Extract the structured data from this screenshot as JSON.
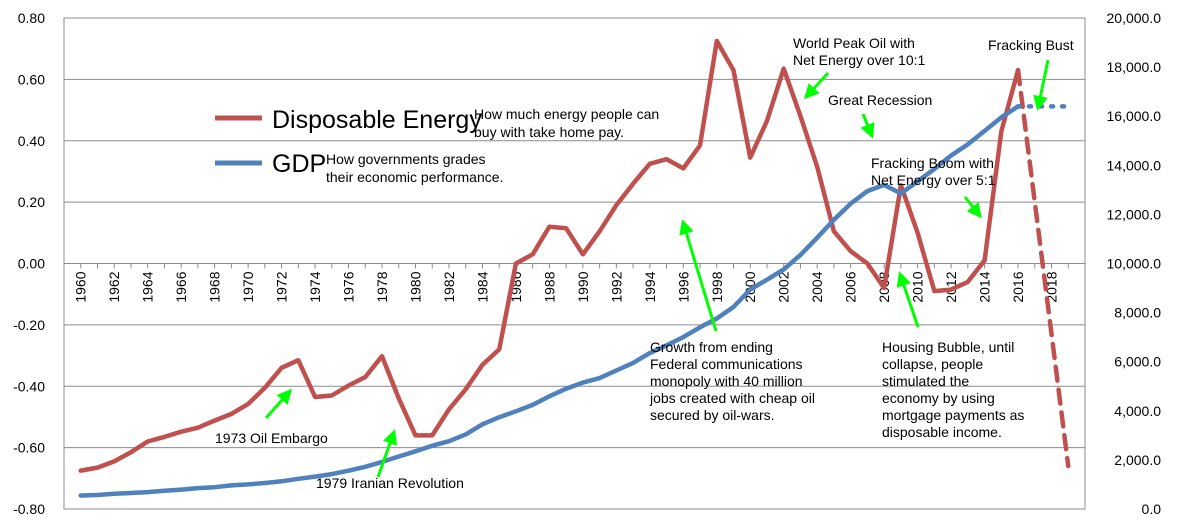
{
  "chart_data": {
    "type": "line",
    "title": "",
    "xlabel": "",
    "ylabel_left": "",
    "ylabel_right": "",
    "x_ticks": [
      "1960",
      "1962",
      "1964",
      "1966",
      "1968",
      "1970",
      "1972",
      "1974",
      "1976",
      "1978",
      "1980",
      "1982",
      "1984",
      "1986",
      "1988",
      "1990",
      "1992",
      "1994",
      "1996",
      "1998",
      "2000",
      "2002",
      "2004",
      "2006",
      "2008",
      "2010",
      "2012",
      "2014",
      "2016",
      "2018"
    ],
    "y_left_ticks": [
      "0.80",
      "0.60",
      "0.40",
      "0.20",
      "0.00",
      "-0.20",
      "-0.40",
      "-0.60",
      "-0.80"
    ],
    "y_right_ticks": [
      "20,000.0",
      "18,000.0",
      "16,000.0",
      "14,000.0",
      "12,000.0",
      "10,000.0",
      "8,000.0",
      "6,000.0",
      "4,000.0",
      "2,000.0",
      "0.0"
    ],
    "y_left_range": [
      -0.8,
      0.8
    ],
    "y_right_range": [
      0,
      20000
    ],
    "x_range": [
      1959,
      2020
    ],
    "grid": "horizontal",
    "series": [
      {
        "name": "Disposable Energy",
        "axis": "left",
        "color": "#c0504d",
        "x": [
          1960,
          1961,
          1962,
          1963,
          1964,
          1965,
          1966,
          1967,
          1968,
          1969,
          1970,
          1971,
          1972,
          1973,
          1974,
          1975,
          1976,
          1977,
          1978,
          1979,
          1980,
          1981,
          1982,
          1983,
          1984,
          1985,
          1986,
          1987,
          1988,
          1989,
          1990,
          1991,
          1992,
          1993,
          1994,
          1995,
          1996,
          1997,
          1998,
          1999,
          2000,
          2001,
          2002,
          2003,
          2004,
          2005,
          2006,
          2007,
          2008,
          2009,
          2010,
          2011,
          2012,
          2013,
          2014,
          2015,
          2016
        ],
        "values": [
          -0.675,
          -0.665,
          -0.645,
          -0.615,
          -0.58,
          -0.565,
          -0.548,
          -0.535,
          -0.512,
          -0.49,
          -0.458,
          -0.405,
          -0.34,
          -0.315,
          -0.435,
          -0.43,
          -0.398,
          -0.37,
          -0.302,
          -0.44,
          -0.56,
          -0.56,
          -0.475,
          -0.41,
          -0.33,
          -0.28,
          0.0,
          0.03,
          0.12,
          0.115,
          0.03,
          0.105,
          0.19,
          0.26,
          0.325,
          0.34,
          0.31,
          0.385,
          0.725,
          0.63,
          0.345,
          0.465,
          0.635,
          0.48,
          0.315,
          0.105,
          0.04,
          0.0,
          -0.08,
          0.255,
          0.1,
          -0.09,
          -0.085,
          -0.06,
          0.01,
          0.43,
          0.63
        ],
        "projection": {
          "style": "dashed",
          "x": [
            2016,
            2019
          ],
          "values": [
            0.63,
            -0.66
          ]
        }
      },
      {
        "name": "GDP",
        "axis": "right",
        "color": "#4f81bd",
        "x": [
          1960,
          1961,
          1962,
          1963,
          1964,
          1965,
          1966,
          1967,
          1968,
          1969,
          1970,
          1971,
          1972,
          1973,
          1974,
          1975,
          1976,
          1977,
          1978,
          1979,
          1980,
          1981,
          1982,
          1983,
          1984,
          1985,
          1986,
          1987,
          1988,
          1989,
          1990,
          1991,
          1992,
          1993,
          1994,
          1995,
          1996,
          1997,
          1998,
          1999,
          2000,
          2001,
          2002,
          2003,
          2004,
          2005,
          2006,
          2007,
          2008,
          2009,
          2010,
          2011,
          2012,
          2013,
          2014,
          2015,
          2016
        ],
        "values": [
          550,
          570,
          620,
          650,
          690,
          740,
          790,
          850,
          890,
          960,
          1000,
          1060,
          1130,
          1230,
          1320,
          1420,
          1560,
          1720,
          1920,
          2140,
          2350,
          2580,
          2760,
          3040,
          3450,
          3740,
          3980,
          4240,
          4590,
          4900,
          5150,
          5330,
          5640,
          5950,
          6350,
          6670,
          7000,
          7400,
          7760,
          8230,
          8940,
          9340,
          9760,
          10350,
          11050,
          11780,
          12440,
          12950,
          13200,
          12850,
          13350,
          13850,
          14400,
          14850,
          15400,
          15950,
          16400
        ],
        "projection": {
          "style": "dotted",
          "x": [
            2016,
            2019
          ],
          "values": [
            16400,
            16400
          ]
        }
      }
    ],
    "legend": [
      {
        "label": "Disposable Energy",
        "color": "#c0504d",
        "note": "How much energy people can buy with take home pay."
      },
      {
        "label": "GDP",
        "color": "#4f81bd",
        "note": "How governments grades their economic performance."
      }
    ],
    "legend_placement": "top-left",
    "annotations": [
      {
        "text": "1973 Oil Embargo"
      },
      {
        "text": "1979 Iranian Revolution"
      },
      {
        "text": "Growth from ending Federal communications monopoly with 40 million jobs created with cheap oil secured by oil-wars."
      },
      {
        "text": "World Peak Oil with Net Energy over 10:1"
      },
      {
        "text": "Great Recession"
      },
      {
        "text": "Fracking Bust"
      },
      {
        "text": "Fracking Boom with Net Energy over 5:1"
      },
      {
        "text": "Housing Bubble, until collapse, people stimulated the economy by using mortgage payments as disposable income."
      }
    ],
    "arrow_color": "#00ff00"
  },
  "legend_lines": {
    "energy_note": [
      "How much energy people can",
      "buy with take home pay."
    ],
    "gdp_note": [
      "How governments grades",
      "their economic performance."
    ]
  },
  "annotation_lines": {
    "oil_embargo": [
      "1973 Oil Embargo"
    ],
    "iranian": [
      "1979 Iranian Revolution"
    ],
    "growth": [
      "Growth from ending",
      "Federal communications",
      "monopoly with 40 million",
      "jobs created with cheap oil",
      "secured by oil-wars."
    ],
    "peak_oil": [
      "World Peak Oil with",
      "Net Energy over 10:1"
    ],
    "great_recession": [
      "Great Recession"
    ],
    "fracking_bust": [
      "Fracking Bust"
    ],
    "fracking_boom": [
      "Fracking Boom with",
      "Net Energy over 5:1"
    ],
    "housing": [
      "Housing Bubble, until",
      "collapse, people",
      "stimulated the",
      "economy by using",
      "mortgage payments as",
      "disposable income."
    ]
  }
}
